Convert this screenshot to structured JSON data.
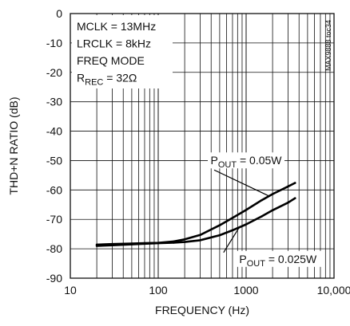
{
  "chart_data": {
    "type": "line",
    "xscale": "log",
    "xlim": [
      10,
      10000
    ],
    "ylim": [
      -90,
      0
    ],
    "xticks": [
      10,
      100,
      1000,
      10000
    ],
    "xtick_labels": [
      "10",
      "100",
      "1000",
      "10,000"
    ],
    "yticks": [
      0,
      -10,
      -20,
      -30,
      -40,
      -50,
      -60,
      -70,
      -80,
      -90
    ],
    "ytick_labels": [
      "0",
      "-10",
      "-20",
      "-30",
      "-40",
      "-50",
      "-60",
      "-70",
      "-80",
      "-90"
    ],
    "xlabel": "FREQUENCY (Hz)",
    "ylabel": "THD+N RATIO (dB)",
    "grid": true,
    "conditions": [
      "MCLK = 13MHz",
      "LRCLK = 8kHz",
      "FREQ MODE",
      "R|REC| = 32Ω"
    ],
    "side_label": "MAX9888 toc34",
    "series": [
      {
        "name": "P|OUT| = 0.05W",
        "x": [
          20,
          30,
          50,
          70,
          100,
          150,
          200,
          300,
          500,
          700,
          1000,
          1500,
          2000,
          3000,
          3600
        ],
        "y": [
          -78.6,
          -78.4,
          -78.2,
          -78.1,
          -78.0,
          -77.5,
          -76.8,
          -75.3,
          -72.0,
          -69.5,
          -66.8,
          -63.5,
          -61.4,
          -58.8,
          -57.6
        ]
      },
      {
        "name": "P|OUT| = 0.025W",
        "x": [
          20,
          30,
          50,
          70,
          100,
          150,
          200,
          300,
          500,
          700,
          1000,
          1500,
          2000,
          3000,
          3600
        ],
        "y": [
          -79.0,
          -78.8,
          -78.5,
          -78.3,
          -78.1,
          -77.9,
          -77.7,
          -77.1,
          -75.4,
          -73.7,
          -71.7,
          -69.0,
          -66.9,
          -64.3,
          -62.8
        ]
      }
    ],
    "annotations": [
      {
        "series": 0,
        "text": "P|OUT| = 0.05W",
        "at_x": 1000,
        "at_y": -51.3,
        "point_x": 1800,
        "point_y": -62.0
      },
      {
        "series": 1,
        "text": "P|OUT| = 0.025W",
        "at_x": 2300,
        "at_y": -84.8,
        "point_x": 840,
        "point_y": -72.6
      }
    ]
  }
}
